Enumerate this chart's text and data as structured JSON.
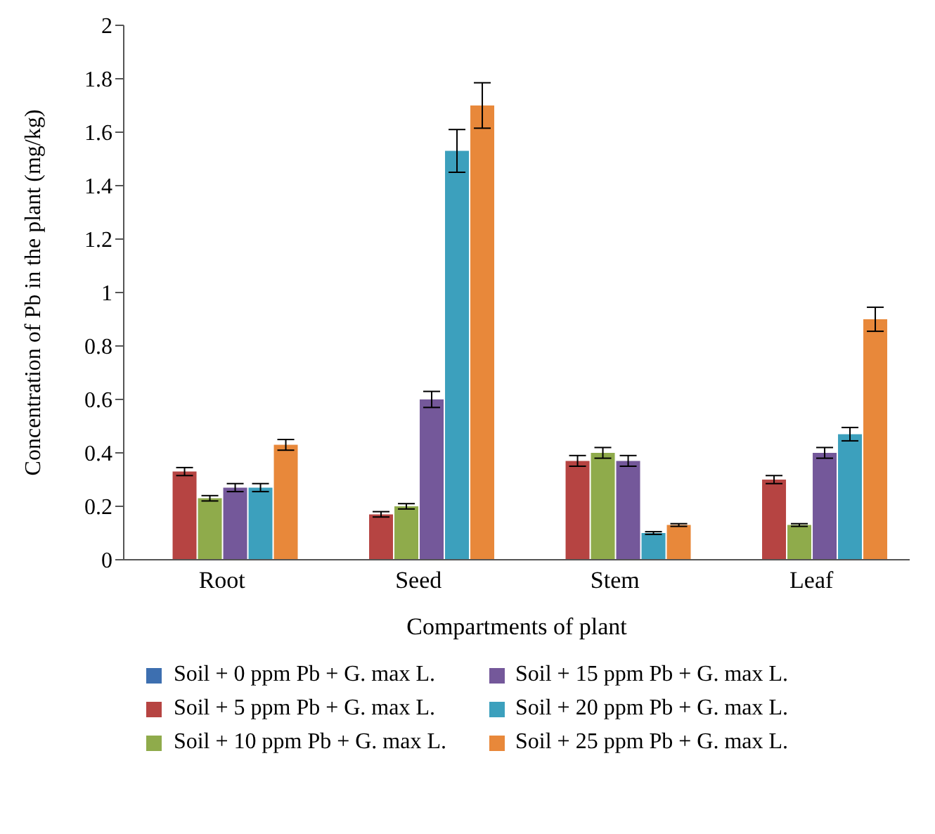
{
  "chart_data": {
    "type": "bar",
    "xlabel": "Compartments of plant",
    "ylabel": "Concentration of Pb in the plant (mg/kg)",
    "categories": [
      "Root",
      "Seed",
      "Stem",
      "Leaf"
    ],
    "series": [
      {
        "name": "Soil + 0 ppm Pb + G. max L.",
        "color": "#3d6fb0",
        "values": [
          0,
          0,
          0,
          0
        ]
      },
      {
        "name": "Soil + 5 ppm Pb + G. max L.",
        "color": "#b64442",
        "values": [
          0.33,
          0.17,
          0.37,
          0.3
        ],
        "errors": [
          0.015,
          0.01,
          0.02,
          0.015
        ]
      },
      {
        "name": "Soil + 10 ppm Pb + G. max L.",
        "color": "#8fab4b",
        "values": [
          0.23,
          0.2,
          0.4,
          0.13
        ],
        "errors": [
          0.01,
          0.01,
          0.02,
          0.005
        ]
      },
      {
        "name": "Soil + 15 ppm Pb + G. max L.",
        "color": "#74589a",
        "values": [
          0.27,
          0.6,
          0.37,
          0.4
        ],
        "errors": [
          0.015,
          0.03,
          0.02,
          0.02
        ]
      },
      {
        "name": "Soil + 20 ppm Pb + G. max L.",
        "color": "#3ca0bd",
        "values": [
          0.27,
          1.53,
          0.1,
          0.47
        ],
        "errors": [
          0.015,
          0.08,
          0.005,
          0.025
        ]
      },
      {
        "name": "Soil + 25 ppm Pb + G. max L.",
        "color": "#e8883a",
        "values": [
          0.43,
          1.7,
          0.13,
          0.9
        ],
        "errors": [
          0.02,
          0.085,
          0.005,
          0.045
        ]
      }
    ],
    "ylim": [
      0,
      2
    ],
    "yticks": [
      0,
      0.2,
      0.4,
      0.6,
      0.8,
      1,
      1.2,
      1.4,
      1.6,
      1.8,
      2
    ],
    "legend": "bottom"
  }
}
